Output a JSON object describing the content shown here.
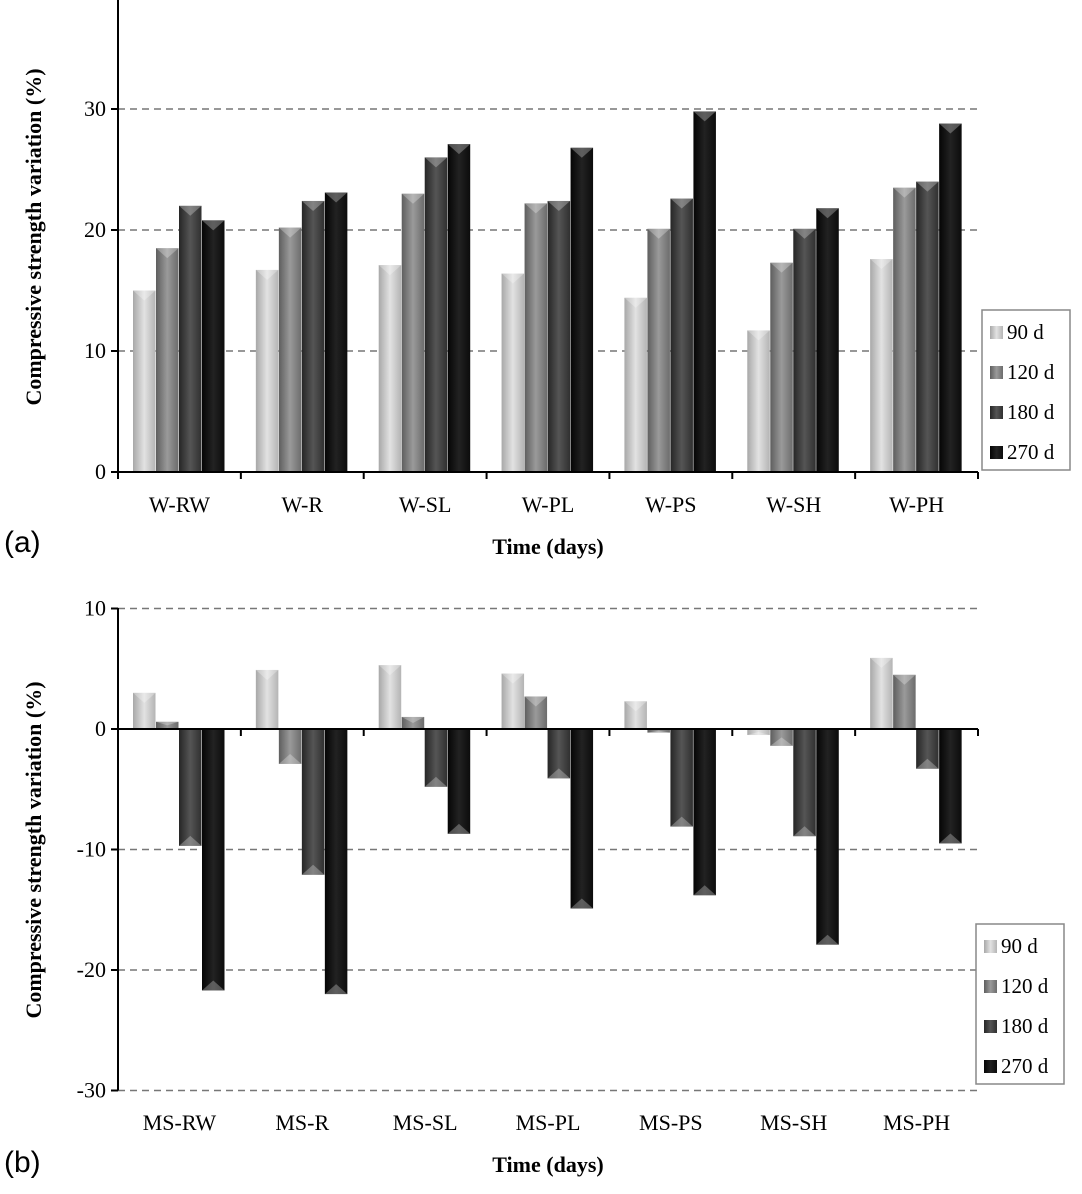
{
  "colors": {
    "90 d": "#c8c8c8",
    "120 d": "#7c7c7c",
    "180 d": "#3c3c3c",
    "270 d": "#111111",
    "grid": "#777777"
  },
  "chart_data": [
    {
      "type": "bar",
      "panel_label": "(a)",
      "xlabel": "Time (days)",
      "ylabel": "Compressive strength variation (%)",
      "ylim": [
        0,
        40
      ],
      "yticks": [
        0,
        10,
        20,
        30
      ],
      "ytick_labels": [
        "0",
        "10",
        "20",
        "30"
      ],
      "grid": "dashed horizontal at 10, 20, 30",
      "legend_position": "right",
      "categories": [
        "W-RW",
        "W-R",
        "W-SL",
        "W-PL",
        "W-PS",
        "W-SH",
        "W-PH"
      ],
      "series": [
        {
          "name": "90 d",
          "values": [
            15.0,
            16.7,
            17.1,
            16.4,
            14.4,
            11.7,
            17.6
          ]
        },
        {
          "name": "120 d",
          "values": [
            18.5,
            20.2,
            23.0,
            22.2,
            20.1,
            17.3,
            23.5
          ]
        },
        {
          "name": "180 d",
          "values": [
            22.0,
            22.4,
            26.0,
            22.4,
            22.6,
            20.1,
            24.0
          ]
        },
        {
          "name": "270 d",
          "values": [
            20.8,
            23.1,
            27.1,
            26.8,
            29.8,
            21.8,
            28.8
          ]
        }
      ]
    },
    {
      "type": "bar",
      "panel_label": "(b)",
      "xlabel": "Time (days)",
      "ylabel": "Compressive strength variation (%)",
      "ylim": [
        -30,
        10
      ],
      "yticks": [
        -30,
        -20,
        -10,
        0,
        10
      ],
      "ytick_labels": [
        "-30",
        "-20",
        "-10",
        "0",
        "10"
      ],
      "grid": "dashed horizontal at 10, -10, -20, -30",
      "legend_position": "right",
      "categories": [
        "MS-RW",
        "MS-R",
        "MS-SL",
        "MS-PL",
        "MS-PS",
        "MS-SH",
        "MS-PH"
      ],
      "series": [
        {
          "name": "90 d",
          "values": [
            3.0,
            4.9,
            5.3,
            4.6,
            2.3,
            -0.5,
            5.9
          ]
        },
        {
          "name": "120 d",
          "values": [
            0.6,
            -2.9,
            1.0,
            2.7,
            -0.3,
            -1.4,
            4.5
          ]
        },
        {
          "name": "180 d",
          "values": [
            -9.7,
            -12.1,
            -4.8,
            -4.1,
            -8.1,
            -8.9,
            -3.3
          ]
        },
        {
          "name": "270 d",
          "values": [
            -21.7,
            -22.0,
            -8.7,
            -14.9,
            -13.8,
            -17.9,
            -9.5
          ]
        }
      ]
    }
  ]
}
